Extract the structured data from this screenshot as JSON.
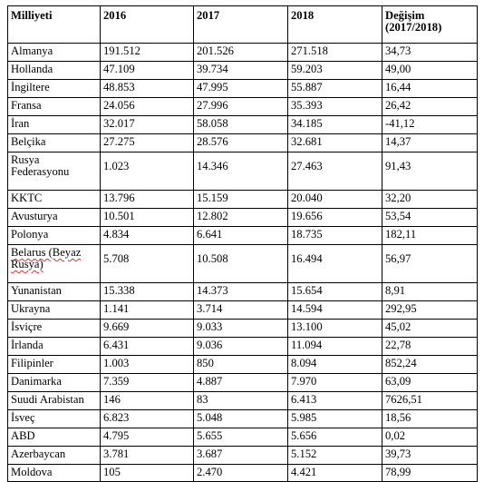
{
  "table": {
    "headers": [
      "Milliyeti",
      "2016",
      "2017",
      "2018",
      "Değişim (2017/2018)"
    ],
    "rows": [
      [
        "Almanya",
        "191.512",
        "201.526",
        "271.518",
        "34,73"
      ],
      [
        "Hollanda",
        "47.109",
        "39.734",
        "59.203",
        "49,00"
      ],
      [
        "İngiltere",
        "48.853",
        "47.995",
        "55.887",
        "16,44"
      ],
      [
        "Fransa",
        "24.056",
        "27.996",
        "35.393",
        "26,42"
      ],
      [
        "İran",
        "32.017",
        "58.058",
        "34.185",
        "-41,12"
      ],
      [
        "Belçika",
        "27.275",
        "28.576",
        "32.681",
        "14,37"
      ],
      [
        "Rusya Federasyonu",
        "1.023",
        "14.346",
        "27.463",
        "91,43"
      ],
      [
        "KKTC",
        "13.796",
        "15.159",
        "20.040",
        "32,20"
      ],
      [
        "Avusturya",
        "10.501",
        "12.802",
        "19.656",
        "53,54"
      ],
      [
        "Polonya",
        "4.834",
        "6.641",
        "18.735",
        "182,11"
      ],
      [
        "Belarus (Beyaz Rusya)",
        "5.708",
        "10.508",
        "16.494",
        "56,97"
      ],
      [
        "Yunanistan",
        "15.338",
        "14.373",
        "15.654",
        "8,91"
      ],
      [
        "Ukrayna",
        "1.141",
        "3.714",
        "14.594",
        "292,95"
      ],
      [
        "İsviçre",
        "9.669",
        "9.033",
        "13.100",
        "45,02"
      ],
      [
        "İrlanda",
        "6.431",
        "9.036",
        "11.094",
        "22,78"
      ],
      [
        "Filipinler",
        "1.003",
        "850",
        "8.094",
        "852,24"
      ],
      [
        "Danimarka",
        "7.359",
        "4.887",
        "7.970",
        "63,09"
      ],
      [
        "Suudi Arabistan",
        "146",
        "83",
        "6.413",
        "7626,51"
      ],
      [
        "İsveç",
        "6.823",
        "5.048",
        "5.985",
        "18,56"
      ],
      [
        "ABD",
        "4.795",
        "5.655",
        "5.656",
        "0,02"
      ],
      [
        "Azerbaycan",
        "3.781",
        "3.687",
        "5.152",
        "39,73"
      ],
      [
        "Moldova",
        "105",
        "2.470",
        "4.421",
        "78,99"
      ]
    ],
    "tall_rows": [
      6,
      10
    ],
    "squiggle_rows": [
      10
    ]
  }
}
